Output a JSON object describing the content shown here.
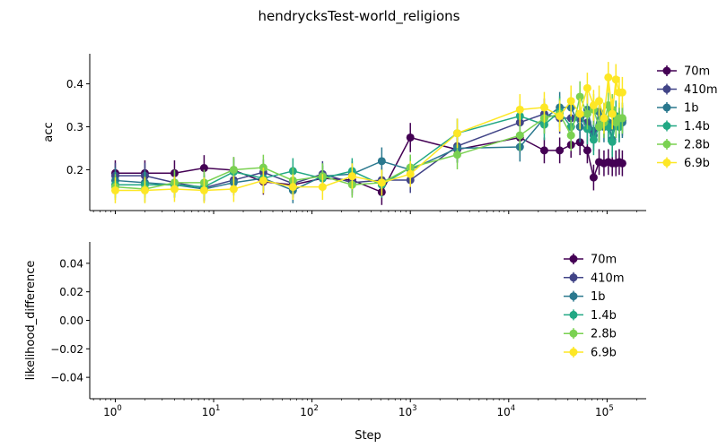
{
  "figure": {
    "title": "hendrycksTest-world_religions",
    "xlabel": "Step"
  },
  "chart_data": [
    {
      "type": "line",
      "panel": "top",
      "ylabel": "acc",
      "xscale": "log",
      "xlim": [
        0.55,
        250000
      ],
      "ylim": [
        0.105,
        0.47
      ],
      "yticks": [
        0.2,
        0.3,
        0.4
      ],
      "ytick_labels": [
        "0.2",
        "0.3",
        "0.4"
      ],
      "grid": false,
      "legend_position": "right-outside",
      "x": [
        1,
        2,
        4,
        8,
        16,
        32,
        64,
        128,
        256,
        512,
        1000,
        3000,
        13000,
        23000,
        33000,
        43000,
        53000,
        63000,
        73000,
        83000,
        93000,
        103000,
        113000,
        123000,
        133000,
        143000
      ],
      "series": [
        {
          "name": "70m",
          "color": "#440154",
          "values": [
            0.192,
            0.192,
            0.192,
            0.204,
            0.199,
            0.172,
            0.165,
            0.18,
            0.176,
            0.148,
            0.275,
            0.247,
            0.275,
            0.245,
            0.245,
            0.258,
            0.264,
            0.245,
            0.182,
            0.218,
            0.215,
            0.218,
            0.215,
            0.215,
            0.218,
            0.215
          ],
          "errors": [
            0.03,
            0.03,
            0.03,
            0.03,
            0.03,
            0.03,
            0.03,
            0.03,
            0.03,
            0.03,
            0.034,
            0.03,
            0.034,
            0.03,
            0.03,
            0.03,
            0.03,
            0.03,
            0.03,
            0.03,
            0.03,
            0.03,
            0.03,
            0.03,
            0.03,
            0.03
          ]
        },
        {
          "name": "410m",
          "color": "#414487",
          "values": [
            0.186,
            0.186,
            0.17,
            0.158,
            0.176,
            0.194,
            0.168,
            0.19,
            0.17,
            0.176,
            0.176,
            0.255,
            0.31,
            0.33,
            0.32,
            0.32,
            0.32,
            0.31,
            0.29,
            0.3,
            0.31,
            0.31,
            0.3,
            0.32,
            0.31,
            0.315
          ],
          "errors": [
            0.03,
            0.03,
            0.03,
            0.03,
            0.03,
            0.03,
            0.03,
            0.03,
            0.03,
            0.03,
            0.03,
            0.034,
            0.036,
            0.036,
            0.036,
            0.036,
            0.036,
            0.036,
            0.036,
            0.036,
            0.036,
            0.036,
            0.036,
            0.036,
            0.036,
            0.036
          ]
        },
        {
          "name": "1b",
          "color": "#2a788e",
          "values": [
            0.175,
            0.17,
            0.165,
            0.155,
            0.17,
            0.18,
            0.152,
            0.185,
            0.19,
            0.22,
            0.2,
            0.25,
            0.253,
            0.32,
            0.345,
            0.345,
            0.3,
            0.34,
            0.28,
            0.335,
            0.3,
            0.31,
            0.27,
            0.31,
            0.3,
            0.31
          ],
          "errors": [
            0.03,
            0.03,
            0.03,
            0.03,
            0.03,
            0.03,
            0.03,
            0.03,
            0.03,
            0.032,
            0.032,
            0.034,
            0.034,
            0.036,
            0.036,
            0.036,
            0.036,
            0.036,
            0.036,
            0.036,
            0.036,
            0.036,
            0.036,
            0.036,
            0.036,
            0.036
          ]
        },
        {
          "name": "1.4b",
          "color": "#22a884",
          "values": [
            0.165,
            0.165,
            0.165,
            0.16,
            0.195,
            0.18,
            0.197,
            0.18,
            0.197,
            0.165,
            0.205,
            0.285,
            0.325,
            0.305,
            0.335,
            0.3,
            0.33,
            0.295,
            0.27,
            0.3,
            0.32,
            0.3,
            0.265,
            0.325,
            0.3,
            0.32
          ],
          "errors": [
            0.03,
            0.03,
            0.03,
            0.03,
            0.03,
            0.03,
            0.03,
            0.03,
            0.03,
            0.03,
            0.03,
            0.034,
            0.036,
            0.036,
            0.036,
            0.036,
            0.036,
            0.036,
            0.036,
            0.036,
            0.036,
            0.036,
            0.036,
            0.036,
            0.036,
            0.036
          ]
        },
        {
          "name": "2.8b",
          "color": "#7ad151",
          "values": [
            0.16,
            0.155,
            0.17,
            0.17,
            0.2,
            0.205,
            0.175,
            0.185,
            0.165,
            0.17,
            0.205,
            0.235,
            0.28,
            0.32,
            0.33,
            0.28,
            0.37,
            0.33,
            0.34,
            0.3,
            0.31,
            0.35,
            0.34,
            0.31,
            0.32,
            0.32
          ],
          "errors": [
            0.03,
            0.03,
            0.03,
            0.03,
            0.03,
            0.03,
            0.03,
            0.03,
            0.03,
            0.03,
            0.03,
            0.034,
            0.036,
            0.036,
            0.036,
            0.036,
            0.036,
            0.036,
            0.036,
            0.036,
            0.036,
            0.036,
            0.036,
            0.036,
            0.036,
            0.036
          ]
        },
        {
          "name": "6.9b",
          "color": "#fde725",
          "values": [
            0.152,
            0.152,
            0.155,
            0.152,
            0.155,
            0.175,
            0.16,
            0.16,
            0.185,
            0.17,
            0.19,
            0.285,
            0.34,
            0.345,
            0.325,
            0.36,
            0.33,
            0.39,
            0.35,
            0.36,
            0.32,
            0.415,
            0.33,
            0.41,
            0.38,
            0.38
          ],
          "errors": [
            0.03,
            0.03,
            0.03,
            0.03,
            0.03,
            0.03,
            0.03,
            0.03,
            0.03,
            0.03,
            0.03,
            0.034,
            0.036,
            0.036,
            0.036,
            0.036,
            0.036,
            0.036,
            0.036,
            0.036,
            0.036,
            0.036,
            0.036,
            0.036,
            0.036,
            0.036
          ]
        }
      ]
    },
    {
      "type": "line",
      "panel": "bottom",
      "ylabel": "likelihood_difference",
      "xscale": "log",
      "xlim": [
        0.55,
        250000
      ],
      "ylim": [
        -0.055,
        0.055
      ],
      "yticks": [
        -0.04,
        -0.02,
        0.0,
        0.02,
        0.04
      ],
      "ytick_labels": [
        "−0.04",
        "−0.02",
        "0.00",
        "0.02",
        "0.04"
      ],
      "xticks": [
        1,
        10,
        100,
        1000,
        10000,
        100000
      ],
      "xtick_bases": [
        "10",
        "10",
        "10",
        "10",
        "10",
        "10"
      ],
      "xtick_exponents": [
        "0",
        "1",
        "2",
        "3",
        "4",
        "5"
      ],
      "grid": false,
      "legend_position": "top-right",
      "series": [
        {
          "name": "70m",
          "color": "#440154",
          "values": []
        },
        {
          "name": "410m",
          "color": "#414487",
          "values": []
        },
        {
          "name": "1b",
          "color": "#2a788e",
          "values": []
        },
        {
          "name": "1.4b",
          "color": "#22a884",
          "values": []
        },
        {
          "name": "2.8b",
          "color": "#7ad151",
          "values": []
        },
        {
          "name": "6.9b",
          "color": "#fde725",
          "values": []
        }
      ]
    }
  ]
}
